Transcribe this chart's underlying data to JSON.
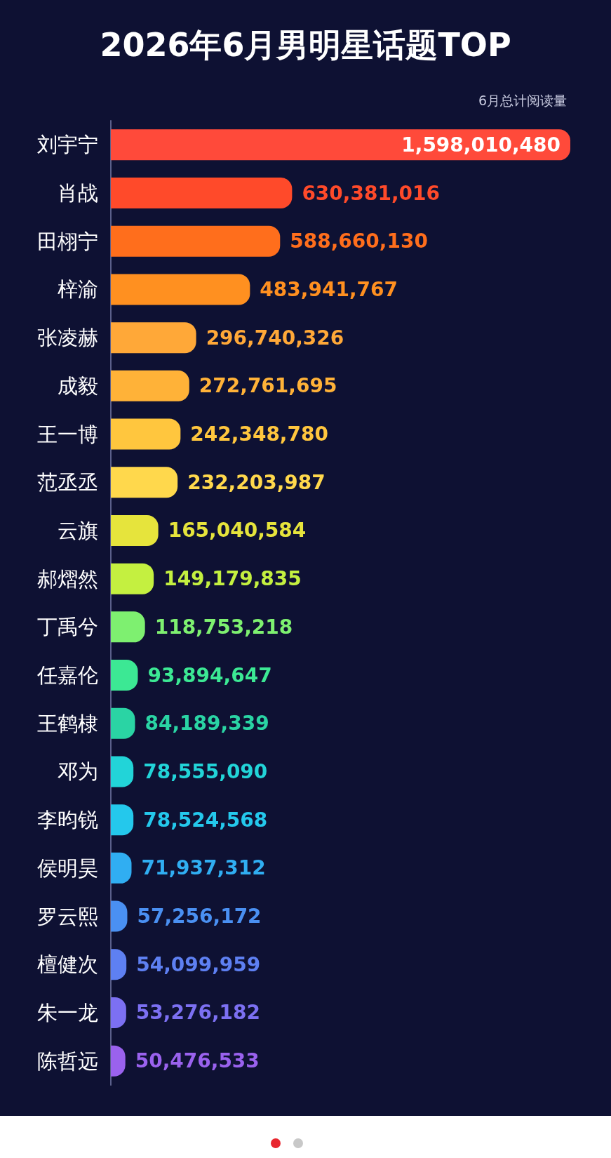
{
  "chart_data": {
    "type": "bar",
    "orientation": "horizontal",
    "title": "2026年6月男明星话题TOP",
    "subtitle": "6月总计阅读量",
    "categories": [
      "刘宇宁",
      "肖战",
      "田栩宁",
      "梓渝",
      "张凌赫",
      "成毅",
      "王一博",
      "范丞丞",
      "云旗",
      "郝熠然",
      "丁禹兮",
      "任嘉伦",
      "王鹤棣",
      "邓为",
      "李昀锐",
      "侯明昊",
      "罗云熙",
      "檀健次",
      "朱一龙",
      "陈哲远"
    ],
    "values": [
      1598010480,
      630381016,
      588660130,
      483941767,
      296740326,
      272761695,
      242348780,
      232203987,
      165040584,
      149179835,
      118753218,
      93894647,
      84189339,
      78555090,
      78524568,
      71937312,
      57256172,
      54099959,
      53276182,
      50476533
    ],
    "colors": [
      "#ff4a3a",
      "#ff4a2a",
      "#ff6e1c",
      "#ff9020",
      "#ffa838",
      "#ffb238",
      "#ffc63e",
      "#ffd84c",
      "#e6e43c",
      "#c4f040",
      "#7ef070",
      "#3ce894",
      "#2ad4a4",
      "#22d4d8",
      "#24c8ec",
      "#30aef2",
      "#4a90f2",
      "#5e80f2",
      "#7c70f2",
      "#9a62ee"
    ],
    "value_labels": [
      "1,598,010,480",
      "630,381,016",
      "588,660,130",
      "483,941,767",
      "296,740,326",
      "272,761,695",
      "242,348,780",
      "232,203,987",
      "165,040,584",
      "149,179,835",
      "118,753,218",
      "93,894,647",
      "84,189,339",
      "78,555,090",
      "78,524,568",
      "71,937,312",
      "57,256,172",
      "54,099,959",
      "53,276,182",
      "50,476,533"
    ]
  }
}
